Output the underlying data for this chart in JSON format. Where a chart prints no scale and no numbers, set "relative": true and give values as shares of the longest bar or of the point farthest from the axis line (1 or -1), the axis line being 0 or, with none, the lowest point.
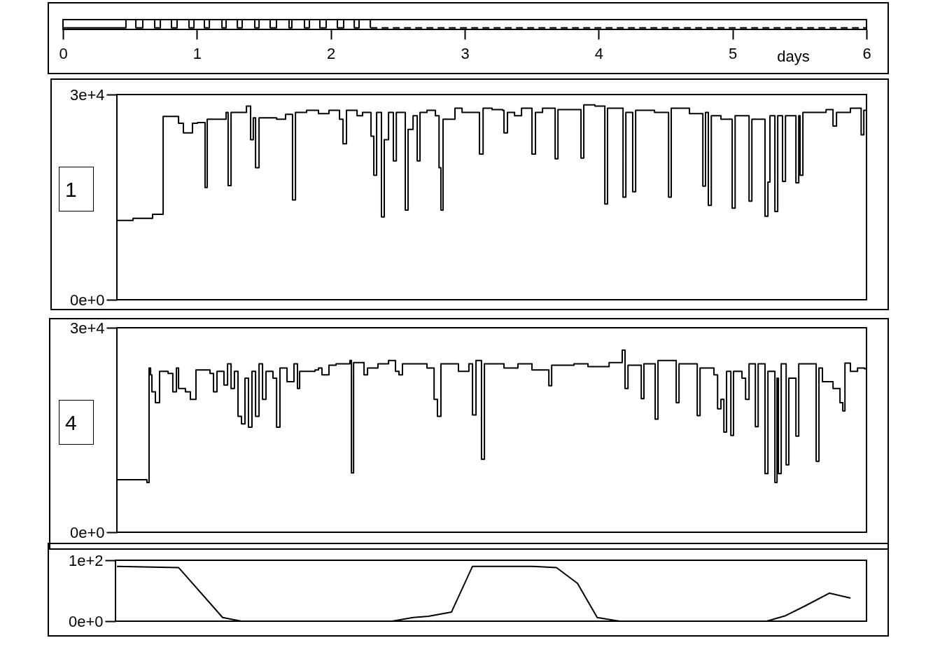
{
  "chart_data": [
    {
      "type": "step",
      "relative": true,
      "xlabel": "days",
      "xlim": [
        0,
        6
      ],
      "xticks": [
        0,
        1,
        2,
        3,
        4,
        5,
        6
      ],
      "tick_labels": "x",
      "series": [
        {
          "color": "#000000",
          "x": [
            0,
            0.47,
            0.544,
            0.596,
            0.685,
            0.727,
            0.81,
            0.852,
            0.941,
            0.978,
            1.056,
            1.093,
            1.187,
            1.218,
            1.302,
            1.338,
            1.432,
            1.464,
            1.547,
            1.594,
            1.688,
            1.709,
            1.803,
            1.84,
            1.918,
            1.965,
            2.049,
            2.096,
            2.175,
            2.211,
            2.295
          ],
          "values": [
            0,
            1,
            0,
            1,
            0,
            1,
            0,
            1,
            0,
            1,
            0,
            1,
            0,
            1,
            0,
            1,
            0,
            1,
            0,
            1,
            0,
            1,
            0,
            1,
            0,
            1,
            0,
            1,
            0,
            1,
            0
          ]
        },
        {
          "color": "#000000",
          "line_style": "dashed",
          "x": [
            2.295,
            6
          ],
          "values": [
            0,
            0
          ]
        }
      ]
    },
    {
      "type": "step",
      "xlim": [
        0,
        6
      ],
      "ylim": [
        0,
        30000
      ],
      "yticks": [
        {
          "value": 0,
          "label": "0e+0"
        },
        {
          "value": 30000,
          "label": "3e+4"
        }
      ],
      "tick_labels": "y",
      "annotations": [
        "1"
      ],
      "series": [
        {
          "color": "#000000",
          "x": [
            0.408,
            0.523,
            0.669,
            0.748,
            0.863,
            0.899,
            0.967,
            1.004,
            1.061,
            1.077,
            1.218,
            1.233,
            1.255,
            1.37,
            1.401,
            1.421,
            1.438,
            1.464,
            1.595,
            1.662,
            1.714,
            1.736,
            1.819,
            1.908,
            1.986,
            2.065,
            2.091,
            2.117,
            2.196,
            2.237,
            2.3,
            2.321,
            2.342,
            2.378,
            2.399,
            2.431,
            2.467,
            2.489,
            2.556,
            2.577,
            2.614,
            2.645,
            2.666,
            2.718,
            2.781,
            2.808,
            2.822,
            2.838,
            2.927,
            2.98,
            3.11,
            3.137,
            3.204,
            3.283,
            3.293,
            3.319,
            3.372,
            3.424,
            3.502,
            3.528,
            3.581,
            3.675,
            3.696,
            3.868,
            3.889,
            3.972,
            4.046,
            4.066,
            4.182,
            4.203,
            4.254,
            4.276,
            4.417,
            4.522,
            4.542,
            4.678,
            4.778,
            4.798,
            4.819,
            4.841,
            4.913,
            4.997,
            5.019,
            5.123,
            5.144,
            5.242,
            5.264,
            5.279,
            5.316,
            5.337,
            5.373,
            5.395,
            5.473,
            5.494,
            5.504,
            5.525,
            5.698,
            5.75,
            5.776,
            5.88,
            5.96,
            5.98,
            6
          ],
          "values": [
            11600,
            11900,
            12500,
            26800,
            25800,
            24400,
            25800,
            25900,
            16400,
            26400,
            27400,
            16700,
            27400,
            28300,
            23400,
            26600,
            19300,
            26600,
            26400,
            27100,
            14600,
            27400,
            27700,
            27200,
            27700,
            26400,
            22800,
            27700,
            26900,
            27400,
            23900,
            18200,
            27400,
            12100,
            23400,
            27400,
            20300,
            27400,
            13100,
            24900,
            26900,
            20300,
            27400,
            27700,
            26900,
            19300,
            13100,
            26400,
            28000,
            27400,
            21300,
            28000,
            27800,
            27700,
            24400,
            27400,
            26900,
            28000,
            21300,
            27400,
            28000,
            20600,
            27800,
            20700,
            28500,
            28300,
            14000,
            28000,
            15000,
            27400,
            15800,
            27700,
            27400,
            15000,
            28000,
            27200,
            16600,
            27400,
            13800,
            26900,
            26400,
            13400,
            26900,
            14400,
            26400,
            12200,
            17200,
            26900,
            12900,
            26900,
            17300,
            26900,
            17100,
            26900,
            18200,
            27400,
            27800,
            25400,
            27400,
            28000,
            24100,
            27700,
            9900
          ]
        }
      ]
    },
    {
      "type": "step",
      "xlim": [
        0,
        6
      ],
      "ylim": [
        0,
        30000
      ],
      "yticks": [
        {
          "value": 0,
          "label": "0e+0"
        },
        {
          "value": 30000,
          "label": "3e+4"
        }
      ],
      "tick_labels": "y",
      "annotations": [
        "4"
      ],
      "series": [
        {
          "color": "#000000",
          "x": [
            0.408,
            0.627,
            0.643,
            0.654,
            0.664,
            0.69,
            0.721,
            0.785,
            0.82,
            0.847,
            0.863,
            0.914,
            0.951,
            0.993,
            1.098,
            1.124,
            1.15,
            1.202,
            1.229,
            1.255,
            1.28,
            1.307,
            1.333,
            1.359,
            1.385,
            1.411,
            1.438,
            1.464,
            1.49,
            1.516,
            1.568,
            1.595,
            1.62,
            1.673,
            1.725,
            1.751,
            1.767,
            1.83,
            1.882,
            1.908,
            1.934,
            1.986,
            2.039,
            2.143,
            2.154,
            2.17,
            2.248,
            2.274,
            2.352,
            2.431,
            2.483,
            2.509,
            2.535,
            2.718,
            2.771,
            2.796,
            2.822,
            2.953,
            3.031,
            3.058,
            3.084,
            3.125,
            3.147,
            3.293,
            3.397,
            3.502,
            3.628,
            3.649,
            3.816,
            3.92,
            4.078,
            4.176,
            4.197,
            4.219,
            4.318,
            4.338,
            4.422,
            4.443,
            4.579,
            4.6,
            4.736,
            4.757,
            4.861,
            4.888,
            4.913,
            4.935,
            4.955,
            4.987,
            5.007,
            5.07,
            5.097,
            5.123,
            5.17,
            5.191,
            5.242,
            5.264,
            5.316,
            5.332,
            5.342,
            5.363,
            5.4,
            5.42,
            5.473,
            5.494,
            5.593,
            5.624,
            5.645,
            5.671,
            5.75,
            5.802,
            5.823,
            5.839,
            5.88,
            5.933,
            5.985,
            6
          ],
          "values": [
            7700,
            7300,
            24100,
            23100,
            20600,
            19000,
            23600,
            23300,
            20600,
            24100,
            21100,
            20600,
            19500,
            23800,
            23300,
            20600,
            23600,
            21600,
            24700,
            21100,
            23600,
            17000,
            15900,
            22600,
            15400,
            23600,
            17000,
            24700,
            19500,
            23600,
            22600,
            15400,
            24100,
            22100,
            24700,
            21100,
            23600,
            23600,
            23800,
            24100,
            23100,
            24500,
            24700,
            25200,
            8700,
            24900,
            23100,
            24100,
            24700,
            25200,
            23600,
            23100,
            24700,
            24100,
            19500,
            17000,
            24700,
            23600,
            24700,
            17200,
            25200,
            10700,
            24700,
            24100,
            24700,
            23800,
            21500,
            24500,
            24700,
            24300,
            24900,
            26700,
            21100,
            24500,
            19600,
            24700,
            16600,
            25200,
            19000,
            24700,
            17100,
            24100,
            23100,
            18100,
            19500,
            14700,
            23600,
            14200,
            23600,
            22600,
            19500,
            24700,
            15500,
            24700,
            8600,
            23600,
            7300,
            22600,
            8600,
            24700,
            9900,
            22600,
            14100,
            24700,
            24700,
            10400,
            24100,
            22100,
            21100,
            19000,
            17800,
            24800,
            23600,
            24100,
            24000,
            10100
          ]
        }
      ]
    },
    {
      "type": "line",
      "xlim": [
        0,
        6
      ],
      "ylim": [
        0,
        100
      ],
      "yticks": [
        {
          "value": 0,
          "label": "0e+0"
        },
        {
          "value": 100,
          "label": "1e+2"
        }
      ],
      "tick_labels": "y",
      "x": [
        0.403,
        0.863,
        1.192,
        1.333,
        2.457,
        2.614,
        2.729,
        2.901,
        3.058,
        3.502,
        3.685,
        3.842,
        3.989,
        4.156,
        5.254,
        5.395,
        5.541,
        5.724,
        5.881
      ],
      "series": [
        {
          "color": "#000000",
          "values": [
            90,
            88,
            6,
            0,
            0,
            6,
            8,
            15,
            90,
            90,
            88,
            62,
            6,
            0,
            0,
            9,
            25,
            46,
            38
          ]
        }
      ]
    }
  ]
}
